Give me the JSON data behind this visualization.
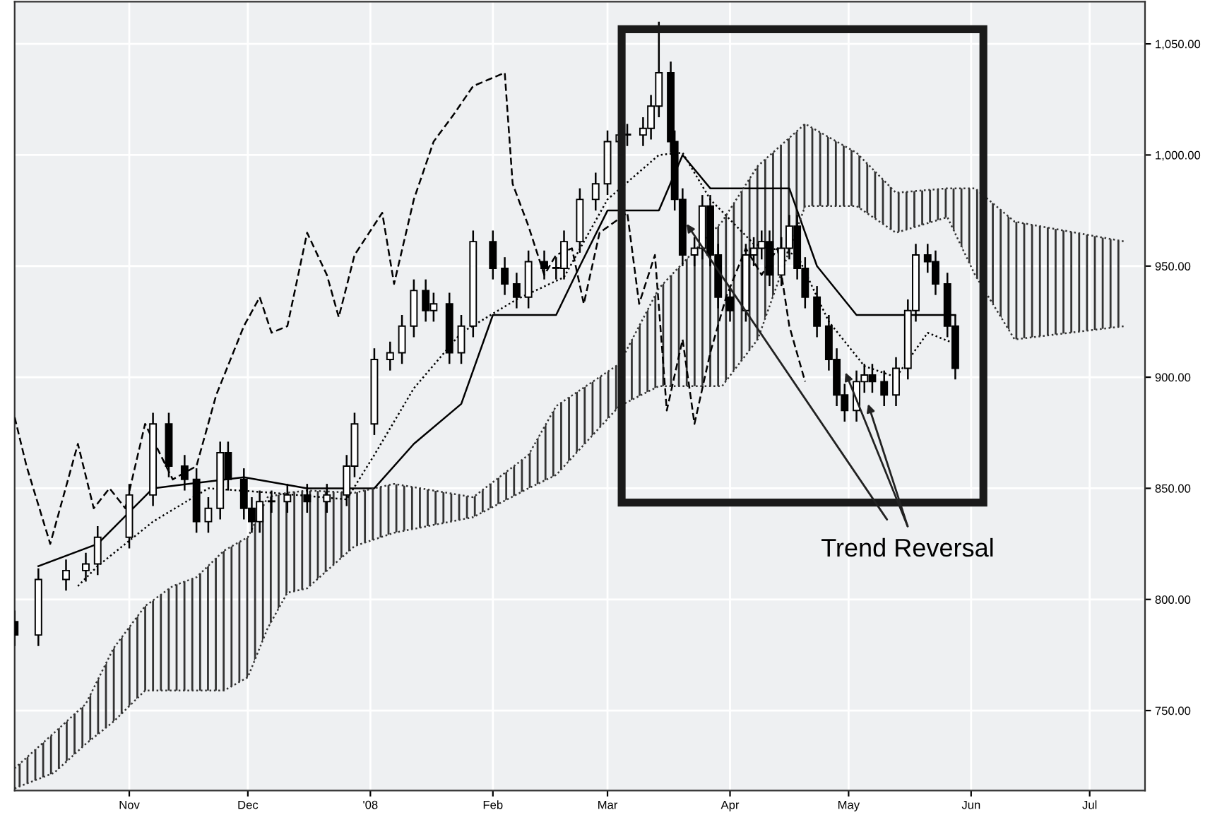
{
  "chart_data": {
    "type": "candlestick",
    "x": [
      "2007-10-03",
      "2007-10-09",
      "2007-10-16",
      "2007-10-21",
      "2007-10-24",
      "2007-11-01",
      "2007-11-07",
      "2007-11-11",
      "2007-11-15",
      "2007-11-18",
      "2007-11-21",
      "2007-11-24",
      "2007-11-26",
      "2007-11-30",
      "2007-12-02",
      "2007-12-04",
      "2007-12-07",
      "2007-12-11",
      "2007-12-16",
      "2007-12-21",
      "2007-12-26",
      "2007-12-28",
      "2008-01-02",
      "2008-01-06",
      "2008-01-09",
      "2008-01-12",
      "2008-01-15",
      "2008-01-17",
      "2008-01-21",
      "2008-01-24",
      "2008-01-27",
      "2008-02-01",
      "2008-02-04",
      "2008-02-07",
      "2008-02-10",
      "2008-02-14",
      "2008-02-17",
      "2008-02-19",
      "2008-02-23",
      "2008-02-27",
      "2008-03-01",
      "2008-03-04",
      "2008-03-06",
      "2008-03-10",
      "2008-03-12",
      "2008-03-14",
      "2008-03-17",
      "2008-03-18",
      "2008-03-20",
      "2008-03-23",
      "2008-03-25",
      "2008-03-27",
      "2008-03-29",
      "2008-04-01",
      "2008-04-05",
      "2008-04-07",
      "2008-04-09",
      "2008-04-11",
      "2008-04-14",
      "2008-04-16",
      "2008-04-18",
      "2008-04-20",
      "2008-04-23",
      "2008-04-26",
      "2008-04-28",
      "2008-04-30",
      "2008-05-03",
      "2008-05-05",
      "2008-05-07",
      "2008-05-10",
      "2008-05-13",
      "2008-05-16",
      "2008-05-18",
      "2008-05-21",
      "2008-05-23",
      "2008-05-26",
      "2008-05-28"
    ],
    "ohlc": [
      [
        790,
        795,
        779,
        784
      ],
      [
        784,
        814,
        779,
        809
      ],
      [
        809,
        818,
        804,
        813
      ],
      [
        813,
        821,
        808,
        816
      ],
      [
        816,
        833,
        811,
        828
      ],
      [
        828,
        852,
        823,
        847
      ],
      [
        847,
        884,
        842,
        879
      ],
      [
        879,
        884,
        855,
        860
      ],
      [
        860,
        865,
        849,
        854
      ],
      [
        854,
        859,
        830,
        835
      ],
      [
        835,
        846,
        830,
        841
      ],
      [
        841,
        871,
        836,
        866
      ],
      [
        866,
        871,
        849,
        854
      ],
      [
        854,
        859,
        836,
        841
      ],
      [
        841,
        846,
        830,
        835
      ],
      [
        835,
        849,
        830,
        844
      ],
      [
        844,
        849,
        839,
        844
      ],
      [
        844,
        852,
        839,
        847
      ],
      [
        847,
        852,
        839,
        844
      ],
      [
        844,
        852,
        839,
        847
      ],
      [
        847,
        865,
        842,
        860
      ],
      [
        860,
        884,
        855,
        879
      ],
      [
        879,
        913,
        874,
        908
      ],
      [
        908,
        916,
        903,
        911
      ],
      [
        911,
        928,
        906,
        923
      ],
      [
        923,
        944,
        918,
        939
      ],
      [
        939,
        944,
        925,
        930
      ],
      [
        930,
        938,
        925,
        933
      ],
      [
        933,
        938,
        906,
        911
      ],
      [
        911,
        928,
        906,
        923
      ],
      [
        923,
        966,
        918,
        961
      ],
      [
        961,
        966,
        944,
        949
      ],
      [
        949,
        954,
        937,
        942
      ],
      [
        942,
        947,
        931,
        936
      ],
      [
        936,
        957,
        931,
        952
      ],
      [
        952,
        957,
        944,
        949
      ],
      [
        949,
        954,
        944,
        949
      ],
      [
        949,
        966,
        944,
        961
      ],
      [
        961,
        985,
        956,
        980
      ],
      [
        980,
        992,
        975,
        987
      ],
      [
        987,
        1011,
        982,
        1006
      ],
      [
        1006,
        1014,
        1001,
        1009
      ],
      [
        1009,
        1014,
        1004,
        1009
      ],
      [
        1009,
        1017,
        1004,
        1012
      ],
      [
        1012,
        1027,
        1007,
        1022
      ],
      [
        1022,
        1060,
        1017,
        1037
      ],
      [
        1037,
        1042,
        1001,
        1006
      ],
      [
        1006,
        1011,
        975,
        980
      ],
      [
        980,
        985,
        950,
        955
      ],
      [
        955,
        963,
        950,
        958
      ],
      [
        958,
        982,
        953,
        977
      ],
      [
        977,
        982,
        950,
        955
      ],
      [
        955,
        960,
        931,
        936
      ],
      [
        936,
        941,
        925,
        930
      ],
      [
        930,
        960,
        925,
        955
      ],
      [
        955,
        963,
        950,
        958
      ],
      [
        958,
        966,
        953,
        961
      ],
      [
        961,
        966,
        941,
        946
      ],
      [
        946,
        963,
        941,
        958
      ],
      [
        958,
        973,
        953,
        968
      ],
      [
        968,
        973,
        944,
        949
      ],
      [
        949,
        954,
        931,
        936
      ],
      [
        936,
        941,
        918,
        923
      ],
      [
        923,
        928,
        903,
        908
      ],
      [
        908,
        913,
        887,
        892
      ],
      [
        892,
        897,
        880,
        885
      ],
      [
        885,
        903,
        880,
        898
      ],
      [
        898,
        906,
        893,
        901
      ],
      [
        901,
        906,
        893,
        898
      ],
      [
        898,
        903,
        887,
        892
      ],
      [
        892,
        909,
        887,
        904
      ],
      [
        904,
        935,
        899,
        930
      ],
      [
        930,
        960,
        925,
        955
      ],
      [
        955,
        960,
        947,
        952
      ],
      [
        952,
        957,
        937,
        942
      ],
      [
        942,
        947,
        918,
        923
      ],
      [
        923,
        928,
        899,
        904
      ]
    ],
    "series": [
      {
        "type": "line",
        "line_style": "solid",
        "color": "#000000",
        "x": [
          "2007-10-09",
          "2007-10-24",
          "2007-11-07",
          "2007-11-30",
          "2007-12-16",
          "2008-01-02",
          "2008-01-12",
          "2008-01-24",
          "2008-02-01",
          "2008-02-17",
          "2008-02-23",
          "2008-03-01",
          "2008-03-14",
          "2008-03-20",
          "2008-03-27",
          "2008-04-16",
          "2008-04-23",
          "2008-05-03",
          "2008-05-28"
        ],
        "values": [
          815,
          825,
          850,
          855,
          850,
          850,
          870,
          888,
          928,
          928,
          950,
          975,
          975,
          1000,
          985,
          985,
          950,
          928,
          928
        ]
      },
      {
        "type": "line",
        "line_style": "dotted",
        "color": "#000000",
        "x": [
          "2007-10-19",
          "2007-10-24",
          "2007-11-07",
          "2007-11-21",
          "2007-12-07",
          "2007-12-26",
          "2008-01-02",
          "2008-01-12",
          "2008-01-24",
          "2008-02-07",
          "2008-02-19",
          "2008-03-01",
          "2008-03-14",
          "2008-03-20",
          "2008-03-27",
          "2008-04-07",
          "2008-04-18",
          "2008-04-26",
          "2008-05-05",
          "2008-05-13",
          "2008-05-21",
          "2008-05-28"
        ],
        "values": [
          806,
          815,
          835,
          850,
          848,
          845,
          865,
          895,
          920,
          935,
          945,
          980,
          1000,
          1001,
          980,
          960,
          955,
          925,
          905,
          900,
          920,
          915
        ]
      },
      {
        "type": "line",
        "line_style": "dashed",
        "color": "#000000",
        "x": [
          "2007-10-03",
          "2007-10-06",
          "2007-10-12",
          "2007-10-19",
          "2007-10-23",
          "2007-10-27",
          "2007-10-31",
          "2007-11-05",
          "2007-11-12",
          "2007-11-18",
          "2007-11-23",
          "2007-11-30",
          "2007-12-04",
          "2007-12-07",
          "2007-12-11",
          "2007-12-16",
          "2007-12-21",
          "2007-12-24",
          "2007-12-28",
          "2008-01-04",
          "2008-01-07",
          "2008-01-12",
          "2008-01-17",
          "2008-01-22",
          "2008-01-27",
          "2008-02-04",
          "2008-02-06",
          "2008-02-10",
          "2008-02-14",
          "2008-02-17",
          "2008-02-21",
          "2008-02-24",
          "2008-02-28",
          "2008-03-06",
          "2008-03-09",
          "2008-03-13",
          "2008-03-16",
          "2008-03-20",
          "2008-03-23",
          "2008-03-27",
          "2008-03-31",
          "2008-04-05",
          "2008-04-09",
          "2008-04-13",
          "2008-04-16",
          "2008-04-20"
        ],
        "values": [
          882,
          860,
          825,
          870,
          841,
          850,
          841,
          879,
          854,
          860,
          892,
          923,
          936,
          920,
          923,
          965,
          946,
          927,
          955,
          974,
          942,
          980,
          1006,
          1018,
          1031,
          1037,
          987,
          968,
          946,
          955,
          958,
          933,
          965,
          974,
          933,
          955,
          885,
          917,
          879,
          911,
          936,
          958,
          946,
          958,
          923,
          898
        ]
      },
      {
        "type": "line",
        "line_style": "dotted",
        "color": "#333333",
        "x": [
          "2007-10-03",
          "2007-10-13",
          "2007-10-21",
          "2007-10-28",
          "2007-11-05",
          "2007-11-12",
          "2007-11-18",
          "2007-11-25",
          "2007-12-01",
          "2007-12-06",
          "2007-12-11",
          "2007-12-16",
          "2007-12-28",
          "2008-01-07",
          "2008-01-27",
          "2008-02-10",
          "2008-02-17",
          "2008-03-04",
          "2008-03-14",
          "2008-03-30",
          "2008-04-08",
          "2008-04-20",
          "2008-05-03",
          "2008-05-13",
          "2008-05-26",
          "2008-06-02",
          "2008-06-12",
          "2008-07-10"
        ],
        "values": [
          724,
          740,
          753,
          778,
          797,
          806,
          810,
          822,
          828,
          846,
          848,
          849,
          848,
          852,
          846,
          865,
          887,
          906,
          940,
          970,
          995,
          1014,
          1001,
          983,
          985,
          985,
          970,
          961
        ],
        "upper": [
          724,
          740,
          753,
          778,
          797,
          806,
          810,
          822,
          828,
          846,
          848,
          849,
          848,
          852,
          846,
          865,
          887,
          906,
          940,
          970,
          995,
          1014,
          1001,
          983,
          985,
          985,
          970,
          961
        ],
        "lower": [
          715,
          722,
          735,
          745,
          759,
          759,
          759,
          759,
          765,
          787,
          803,
          805,
          824,
          830,
          837,
          850,
          856,
          887,
          896,
          896,
          917,
          977,
          977,
          965,
          972,
          946,
          917,
          923
        ]
      },
      {
        "type": "line",
        "line_style": "dotted",
        "color": "#333333",
        "x": [
          "2007-10-03",
          "2007-10-13",
          "2007-10-21",
          "2007-10-28",
          "2007-11-05",
          "2007-11-12",
          "2007-11-18",
          "2007-11-25",
          "2007-12-01",
          "2007-12-06",
          "2007-12-11",
          "2007-12-16",
          "2007-12-28",
          "2008-01-07",
          "2008-01-27",
          "2008-02-10",
          "2008-02-17",
          "2008-03-04",
          "2008-03-14",
          "2008-03-30",
          "2008-04-08",
          "2008-04-20",
          "2008-05-03",
          "2008-05-13",
          "2008-05-26",
          "2008-06-02",
          "2008-06-12",
          "2008-07-10"
        ],
        "values": [
          715,
          722,
          735,
          745,
          759,
          759,
          759,
          759,
          765,
          787,
          803,
          805,
          824,
          830,
          837,
          850,
          856,
          887,
          896,
          896,
          917,
          977,
          977,
          965,
          972,
          946,
          917,
          923
        ]
      }
    ],
    "annotations": [
      {
        "text": "Trend Reversal",
        "x": "2008-03-21",
        "y": 969
      }
    ],
    "xlim": [
      "2007-10-03",
      "2008-07-15"
    ],
    "xticks": [
      {
        "value": "2007-11-01",
        "label": "Nov"
      },
      {
        "value": "2007-12-01",
        "label": "Dec"
      },
      {
        "value": "2008-01-01",
        "label": "'08"
      },
      {
        "value": "2008-02-01",
        "label": "Feb"
      },
      {
        "value": "2008-03-01",
        "label": "Mar"
      },
      {
        "value": "2008-04-01",
        "label": "Apr"
      },
      {
        "value": "2008-05-01",
        "label": "May"
      },
      {
        "value": "2008-06-01",
        "label": "Jun"
      },
      {
        "value": "2008-07-01",
        "label": "Jul"
      }
    ],
    "ylim": [
      714,
      1069
    ],
    "yticks": [
      {
        "value": 750,
        "label": "750.00"
      },
      {
        "value": 800,
        "label": "800.00"
      },
      {
        "value": 850,
        "label": "850.00"
      },
      {
        "value": 900,
        "label": "900.00"
      },
      {
        "value": 950,
        "label": "950.00"
      },
      {
        "value": 1000,
        "label": "1,000.00"
      },
      {
        "value": 1050,
        "label": "1,050.00"
      }
    ],
    "grid": true
  }
}
